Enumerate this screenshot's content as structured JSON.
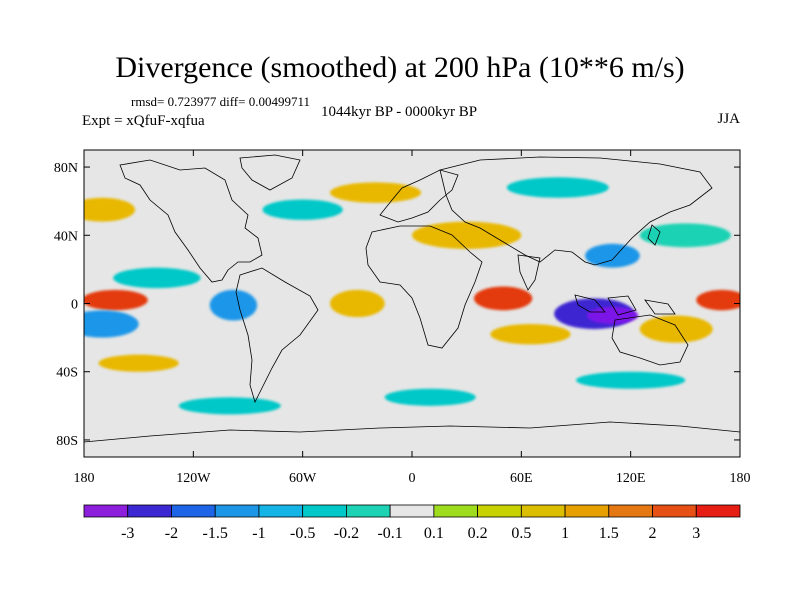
{
  "figure": {
    "title": "Divergence (smoothed) at 200 hPa (10**6 m/s)",
    "stats": "rmsd= 0.723977 diff= 0.00499711",
    "period": "1044kyr BP - 0000kyr BP",
    "experiment": "Expt = xQfuF-xqfua",
    "season": "JJA"
  },
  "map": {
    "x_ticks": [
      {
        "lon": -180,
        "label": "180"
      },
      {
        "lon": -120,
        "label": "120W"
      },
      {
        "lon": -60,
        "label": "60W"
      },
      {
        "lon": 0,
        "label": "0"
      },
      {
        "lon": 60,
        "label": "60E"
      },
      {
        "lon": 120,
        "label": "120E"
      },
      {
        "lon": 180,
        "label": "180"
      }
    ],
    "y_ticks": [
      {
        "lat": 80,
        "label": "80N"
      },
      {
        "lat": 40,
        "label": "40N"
      },
      {
        "lat": 0,
        "label": "0"
      },
      {
        "lat": -40,
        "label": "40S"
      },
      {
        "lat": -80,
        "label": "80S"
      }
    ],
    "lon_range": [
      -180,
      180
    ],
    "lat_range": [
      -90,
      90
    ],
    "blobs": [
      {
        "lon": -163,
        "lat": 2,
        "rx": 18,
        "ry": 6,
        "color": "#e33b10"
      },
      {
        "lon": 170,
        "lat": 2,
        "rx": 14,
        "ry": 6,
        "color": "#e33b10"
      },
      {
        "lon": 50,
        "lat": 3,
        "rx": 16,
        "ry": 7,
        "color": "#e33b10"
      },
      {
        "lon": 100,
        "lat": -6,
        "rx": 22,
        "ry": 9,
        "color": "#3c28d2"
      },
      {
        "lon": 110,
        "lat": -7,
        "rx": 14,
        "ry": 5,
        "color": "#7c16e8"
      },
      {
        "lon": -98,
        "lat": -1,
        "rx": 13,
        "ry": 9,
        "color": "#1e96e8"
      },
      {
        "lon": -170,
        "lat": -12,
        "rx": 20,
        "ry": 8,
        "color": "#1e96e8"
      },
      {
        "lon": -140,
        "lat": 15,
        "rx": 24,
        "ry": 6,
        "color": "#00c8c8"
      },
      {
        "lon": 30,
        "lat": 40,
        "rx": 30,
        "ry": 8,
        "color": "#e8b800"
      },
      {
        "lon": -30,
        "lat": 0,
        "rx": 15,
        "ry": 8,
        "color": "#e8b800"
      },
      {
        "lon": 145,
        "lat": -15,
        "rx": 20,
        "ry": 8,
        "color": "#e8b800"
      },
      {
        "lon": 65,
        "lat": -18,
        "rx": 22,
        "ry": 6,
        "color": "#e8b800"
      },
      {
        "lon": 150,
        "lat": 40,
        "rx": 25,
        "ry": 7,
        "color": "#1ed2b4"
      },
      {
        "lon": -60,
        "lat": 55,
        "rx": 22,
        "ry": 6,
        "color": "#00c8c8"
      },
      {
        "lon": 80,
        "lat": 68,
        "rx": 28,
        "ry": 6,
        "color": "#00c8c8"
      },
      {
        "lon": 10,
        "lat": -55,
        "rx": 25,
        "ry": 5,
        "color": "#00c8c8"
      },
      {
        "lon": -100,
        "lat": -60,
        "rx": 28,
        "ry": 5,
        "color": "#00c8c8"
      },
      {
        "lon": -170,
        "lat": 55,
        "rx": 18,
        "ry": 7,
        "color": "#e8b800"
      },
      {
        "lon": -20,
        "lat": 65,
        "rx": 25,
        "ry": 6,
        "color": "#e8b800"
      },
      {
        "lon": 110,
        "lat": 28,
        "rx": 15,
        "ry": 7,
        "color": "#1e96e8"
      },
      {
        "lon": -150,
        "lat": -35,
        "rx": 22,
        "ry": 5,
        "color": "#e8b800"
      },
      {
        "lon": 120,
        "lat": -45,
        "rx": 30,
        "ry": 5,
        "color": "#00c8c8"
      }
    ]
  },
  "colorbar": {
    "colors": [
      "#8c1edc",
      "#3c28d2",
      "#1e64e6",
      "#1e96e8",
      "#14b4e6",
      "#00c8c8",
      "#1ed2b4",
      "#e6e6e6",
      "#a0dc1e",
      "#c8d200",
      "#dcbe00",
      "#e6a000",
      "#e67814",
      "#e65014",
      "#e61e14"
    ],
    "labels": [
      "-3",
      "-2",
      "-1.5",
      "-1",
      "-0.5",
      "-0.2",
      "-0.1",
      "0.1",
      "0.2",
      "0.5",
      "1",
      "1.5",
      "2",
      "3"
    ]
  }
}
